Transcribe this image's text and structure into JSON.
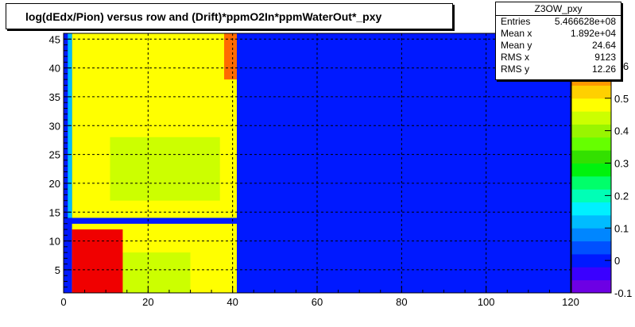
{
  "title": "log(dEdx/Pion) versus row and (Drift)*ppmO2In*ppmWaterOut*_pxy",
  "stats": {
    "name": "Z3OW_pxy",
    "rows": [
      {
        "label": "Entries",
        "value": "5.466628e+08"
      },
      {
        "label": "Mean x",
        "value": "1.892e+04"
      },
      {
        "label": "Mean y",
        "value": "24.64"
      },
      {
        "label": "RMS x",
        "value": "9123"
      },
      {
        "label": "RMS y",
        "value": "12.26"
      }
    ]
  },
  "chart_data": {
    "type": "heatmap",
    "title": "log(dEdx/Pion) versus row and (Drift)*ppmO2In*ppmWaterOut*_pxy",
    "xlabel": "",
    "ylabel": "",
    "xlim": [
      0,
      120
    ],
    "ylim": [
      1,
      46
    ],
    "x_ticks": [
      0,
      20,
      40,
      60,
      80,
      100,
      120
    ],
    "y_ticks": [
      5,
      10,
      15,
      20,
      25,
      30,
      35,
      40,
      45
    ],
    "grid": true,
    "z_range": [
      -0.1,
      0.7
    ],
    "z_ticks": [
      -0.1,
      0,
      0.1,
      0.2,
      0.3,
      0.4,
      0.5,
      0.6
    ],
    "palette": [
      "#6d00e4",
      "#3a00ff",
      "#0019ff",
      "#0050ff",
      "#0086ff",
      "#00bcff",
      "#00f0ff",
      "#00ffb6",
      "#00ff6a",
      "#00f20d",
      "#33e000",
      "#66ff00",
      "#99f500",
      "#ccff00",
      "#ffff00",
      "#ffd000",
      "#ff9900",
      "#ff6a00",
      "#ff3300",
      "#f00000"
    ],
    "background_value": 0.0,
    "regions": [
      {
        "name": "upper-block",
        "x": [
          2,
          41
        ],
        "y": [
          14,
          46
        ],
        "value": 0.49
      },
      {
        "name": "upper-inner",
        "x": [
          11,
          37
        ],
        "y": [
          17,
          28
        ],
        "value": 0.44
      },
      {
        "name": "upper-edge-left",
        "x": [
          1,
          2
        ],
        "y": [
          14,
          46
        ],
        "value": 0.1
      },
      {
        "name": "upper-edge-right",
        "x": [
          38,
          41
        ],
        "y": [
          38,
          46
        ],
        "value": 0.6
      },
      {
        "name": "lower-block",
        "x": [
          2,
          41
        ],
        "y": [
          1,
          13
        ],
        "value": 0.49
      },
      {
        "name": "lower-inner",
        "x": [
          11,
          30
        ],
        "y": [
          1,
          8
        ],
        "value": 0.44
      },
      {
        "name": "lower-hot",
        "x": [
          2,
          14
        ],
        "y": [
          1,
          12
        ],
        "value": 0.7
      }
    ],
    "gap_row": {
      "y": [
        13,
        14
      ],
      "value": 0.0
    }
  }
}
